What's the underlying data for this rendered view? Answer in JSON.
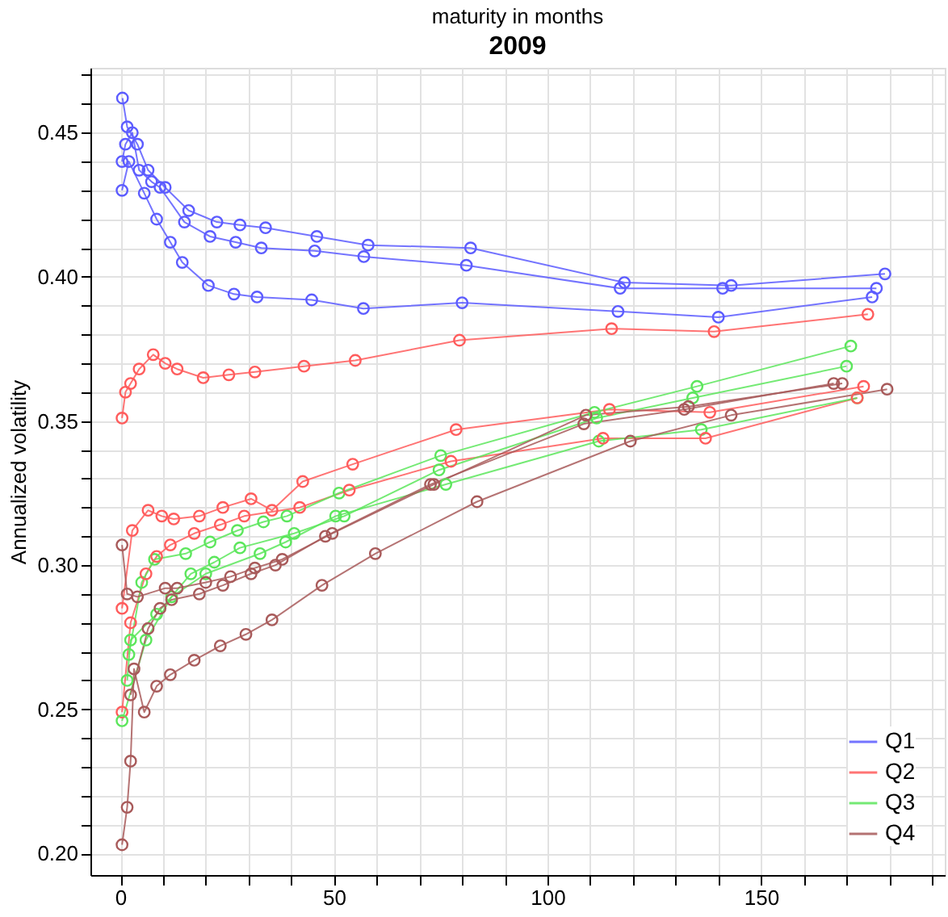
{
  "chart_data": {
    "type": "line",
    "title": "2009",
    "xlabel": "maturity in months",
    "ylabel": "Annualized volatility",
    "marker": "circle",
    "line_style": "solid",
    "grid": true,
    "legend": "bottom right",
    "xlim": [
      -7,
      193
    ],
    "ylim": [
      0.1925,
      0.4725
    ],
    "xticks": [
      0,
      {
        "value": 10,
        "label": null
      },
      {
        "value": 20,
        "label": null
      },
      {
        "value": 30,
        "label": null
      },
      {
        "value": 40,
        "label": null
      },
      50,
      {
        "value": 60,
        "label": null
      },
      {
        "value": 70,
        "label": null
      },
      {
        "value": 80,
        "label": null
      },
      {
        "value": 90,
        "label": null
      },
      100,
      {
        "value": 110,
        "label": null
      },
      {
        "value": 120,
        "label": null
      },
      {
        "value": 130,
        "label": null
      },
      {
        "value": 140,
        "label": null
      },
      150,
      {
        "value": 160,
        "label": null
      },
      {
        "value": 170,
        "label": null
      },
      {
        "value": 180,
        "label": null
      },
      {
        "value": 190,
        "label": null
      }
    ],
    "yticks": [
      {
        "value": 0.2,
        "label": "0.20"
      },
      {
        "value": 0.21,
        "label": null
      },
      {
        "value": 0.22,
        "label": null
      },
      {
        "value": 0.23,
        "label": null
      },
      {
        "value": 0.24,
        "label": null
      },
      {
        "value": 0.25,
        "label": "0.25"
      },
      {
        "value": 0.26,
        "label": null
      },
      {
        "value": 0.27,
        "label": null
      },
      {
        "value": 0.28,
        "label": null
      },
      {
        "value": 0.29,
        "label": null
      },
      {
        "value": 0.3,
        "label": "0.30"
      },
      {
        "value": 0.31,
        "label": null
      },
      {
        "value": 0.32,
        "label": null
      },
      {
        "value": 0.33,
        "label": null
      },
      {
        "value": 0.34,
        "label": null
      },
      {
        "value": 0.35,
        "label": "0.35"
      },
      {
        "value": 0.36,
        "label": null
      },
      {
        "value": 0.37,
        "label": null
      },
      {
        "value": 0.38,
        "label": null
      },
      {
        "value": 0.39,
        "label": null
      },
      {
        "value": 0.4,
        "label": "0.40"
      },
      {
        "value": 0.41,
        "label": null
      },
      {
        "value": 0.42,
        "label": null
      },
      {
        "value": 0.43,
        "label": null
      },
      {
        "value": 0.44,
        "label": null
      },
      {
        "value": 0.45,
        "label": "0.45"
      },
      {
        "value": 0.46,
        "label": null
      },
      {
        "value": 0.47,
        "label": null
      }
    ],
    "series": [
      {
        "name": "Q1",
        "color": "#5c5cff",
        "x": [
          0.5,
          1.6,
          4,
          6.5,
          10.5,
          16,
          22.6,
          28,
          34,
          46,
          58,
          82,
          118,
          143,
          179
        ],
        "values": [
          0.462,
          0.452,
          0.446,
          0.437,
          0.431,
          0.423,
          0.419,
          0.418,
          0.417,
          0.414,
          0.411,
          0.41,
          0.398,
          0.397,
          0.401
        ]
      },
      {
        "color": "#5c5cff",
        "x": [
          0.4,
          1.2,
          2.8,
          4.4,
          7.3,
          9.3,
          15,
          21,
          27,
          33,
          45.5,
          57,
          81,
          117,
          141,
          177
        ],
        "values": [
          0.44,
          0.446,
          0.45,
          0.437,
          0.433,
          0.431,
          0.419,
          0.414,
          0.412,
          0.41,
          0.409,
          0.407,
          0.404,
          0.396,
          0.396,
          0.396
        ]
      },
      {
        "color": "#5c5cff",
        "x": [
          0.4,
          2,
          5.6,
          8.5,
          11.7,
          14.5,
          20.6,
          26.6,
          32,
          44.8,
          56.9,
          80,
          116.5,
          140,
          176
        ],
        "values": [
          0.43,
          0.44,
          0.429,
          0.42,
          0.412,
          0.405,
          0.397,
          0.394,
          0.393,
          0.392,
          0.389,
          0.391,
          0.388,
          0.386,
          0.393
        ]
      },
      {
        "name": "Q2",
        "color": "#ff5c5c",
        "x": [
          0.4,
          1.2,
          2.4,
          4.4,
          7.7,
          10.5,
          13.3,
          19.4,
          25.4,
          31.5,
          43,
          55,
          79.4,
          115,
          139,
          175
        ],
        "values": [
          0.351,
          0.36,
          0.363,
          0.368,
          0.373,
          0.37,
          0.368,
          0.365,
          0.366,
          0.367,
          0.369,
          0.371,
          0.378,
          0.382,
          0.381,
          0.387
        ]
      },
      {
        "color": "#ff5c5c",
        "x": [
          0.4,
          2.8,
          6.5,
          9.7,
          12.5,
          18.5,
          24,
          30.6,
          35.5,
          42.7,
          54.4,
          78.6,
          114.5,
          138,
          174
        ],
        "values": [
          0.285,
          0.312,
          0.319,
          0.317,
          0.316,
          0.317,
          0.32,
          0.323,
          0.319,
          0.329,
          0.335,
          0.347,
          0.354,
          0.353,
          0.362
        ]
      },
      {
        "color": "#ff5c5c",
        "x": [
          0.4,
          2.4,
          6,
          8.5,
          11.7,
          17.3,
          23.4,
          29,
          42,
          53.6,
          77.4,
          113,
          137,
          172.5
        ],
        "values": [
          0.249,
          0.28,
          0.297,
          0.303,
          0.307,
          0.311,
          0.314,
          0.317,
          0.32,
          0.326,
          0.336,
          0.344,
          0.344,
          0.358
        ]
      },
      {
        "name": "Q3",
        "color": "#5ce65c",
        "x": [
          2,
          5,
          8,
          15.3,
          21,
          27.4,
          33.5,
          39,
          51.2,
          75,
          111,
          135,
          171
        ],
        "values": [
          0.269,
          0.294,
          0.302,
          0.304,
          0.308,
          0.312,
          0.315,
          0.317,
          0.325,
          0.338,
          0.353,
          0.362,
          0.376
        ]
      },
      {
        "color": "#5ce65c",
        "x": [
          1.6,
          2.4,
          8.5,
          16.5,
          22,
          28,
          40.7,
          52.4,
          74.6,
          111.5,
          134,
          170
        ],
        "values": [
          0.26,
          0.274,
          0.283,
          0.297,
          0.301,
          0.306,
          0.311,
          0.317,
          0.333,
          0.351,
          0.358,
          0.369
        ]
      },
      {
        "color": "#5ce65c",
        "x": [
          0.4,
          6,
          12,
          20,
          32.7,
          38.7,
          50.4,
          76.2,
          112,
          136,
          172.5
        ],
        "values": [
          0.246,
          0.274,
          0.289,
          0.297,
          0.304,
          0.308,
          0.317,
          0.328,
          0.343,
          0.347,
          0.358
        ]
      },
      {
        "name": "Q4",
        "color": "#a85a5a",
        "x": [
          0.4,
          1.6,
          4,
          10.5,
          13.3,
          20,
          25.8,
          31.5,
          37.9,
          49.6,
          73.4,
          109,
          133,
          169
        ],
        "values": [
          0.307,
          0.29,
          0.289,
          0.292,
          0.292,
          0.294,
          0.296,
          0.299,
          0.302,
          0.311,
          0.328,
          0.352,
          0.355,
          0.363
        ]
      },
      {
        "color": "#a85a5a",
        "x": [
          2.4,
          6.5,
          9.3,
          12,
          18.5,
          24,
          30.6,
          36.3,
          48,
          72.6,
          108.5,
          132,
          167
        ],
        "values": [
          0.255,
          0.278,
          0.285,
          0.288,
          0.29,
          0.293,
          0.297,
          0.3,
          0.31,
          0.328,
          0.349,
          0.354,
          0.363
        ]
      },
      {
        "color": "#a85a5a",
        "x": [
          0.4,
          1.6,
          2.4,
          3.2,
          5.6,
          8.5,
          11.7,
          17.3,
          23.4,
          29.4,
          35.5,
          47.2,
          59.7,
          83.5,
          119.4,
          143,
          179.5
        ],
        "values": [
          0.203,
          0.216,
          0.232,
          0.264,
          0.249,
          0.258,
          0.262,
          0.267,
          0.272,
          0.276,
          0.281,
          0.293,
          0.304,
          0.322,
          0.343,
          0.352,
          0.361
        ]
      }
    ]
  }
}
